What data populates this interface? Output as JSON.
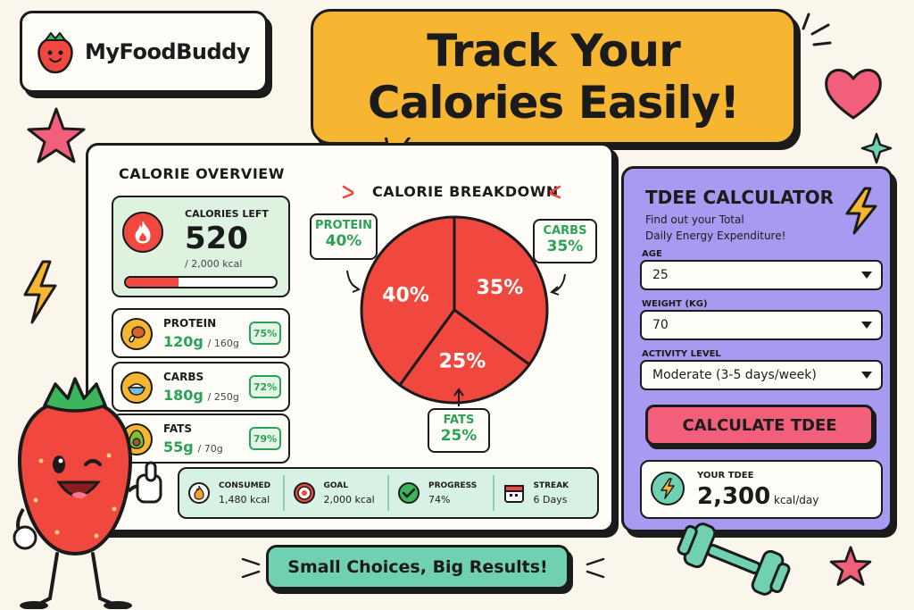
{
  "brand": {
    "name": "MyFoodBuddy"
  },
  "headline": {
    "line1": "Track Your",
    "line2": "Calories Easily!"
  },
  "overview": {
    "title": "CALORIE OVERVIEW",
    "calories_left_label": "CALORIES LEFT",
    "calories_left_value": "520",
    "calories_total": "/ 2,000 kcal",
    "progress_fraction": 0.35
  },
  "macros": [
    {
      "name": "PROTEIN",
      "value": "120g",
      "target": "/ 160g",
      "percent": "75%"
    },
    {
      "name": "CARBS",
      "value": "180g",
      "target": "/ 250g",
      "percent": "72%"
    },
    {
      "name": "FATS",
      "value": "55g",
      "target": "/ 70g",
      "percent": "79%"
    }
  ],
  "stats": [
    {
      "label": "CONSUMED",
      "value": "1,480 kcal"
    },
    {
      "label": "GOAL",
      "value": "2,000 kcal"
    },
    {
      "label": "PROGRESS",
      "value": "74%"
    },
    {
      "label": "STREAK",
      "value": "6 Days"
    }
  ],
  "chart_data": {
    "type": "pie",
    "title": "CALORIE BREAKDOWN",
    "categories": [
      "PROTEIN",
      "CARBS",
      "FATS"
    ],
    "values": [
      40,
      35,
      25
    ],
    "slice_labels": [
      "40%",
      "35%",
      "25%"
    ],
    "callouts": [
      {
        "title": "PROTEIN",
        "percent": "40%"
      },
      {
        "title": "CARBS",
        "percent": "35%"
      },
      {
        "title": "FATS",
        "percent": "25%"
      }
    ],
    "colors": [
      "#f0483e",
      "#f0483e",
      "#f0483e"
    ]
  },
  "tdee": {
    "title": "TDEE CALCULATOR",
    "subtitle_line1": "Find out your Total",
    "subtitle_line2": "Daily Energy Expenditure!",
    "age_label": "AGE",
    "age_value": "25",
    "weight_label": "WEIGHT (KG)",
    "weight_value": "70",
    "activity_label": "ACTIVITY LEVEL",
    "activity_value": "Moderate (3-5 days/week)",
    "button_label": "CALCULATE TDEE",
    "result_label": "YOUR TDEE",
    "result_value": "2,300",
    "result_unit": "kcal/day"
  },
  "banner": {
    "text": "Small Choices, Big Results!"
  },
  "colors": {
    "accent_green": "#2aa357",
    "headline_yellow": "#f7b632",
    "tdee_purple": "#a89af0",
    "button_pink": "#f25f7a",
    "pie_red": "#f0483e"
  }
}
